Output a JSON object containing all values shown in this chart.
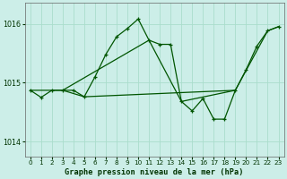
{
  "title": "Graphe pression niveau de la mer (hPa)",
  "background_color": "#cceee8",
  "grid_color": "#aaddcc",
  "line_color": "#005500",
  "marker_color": "#005500",
  "xlim": [
    -0.5,
    23.5
  ],
  "ylim": [
    1013.75,
    1016.35
  ],
  "xticks": [
    0,
    1,
    2,
    3,
    4,
    5,
    6,
    7,
    8,
    9,
    10,
    11,
    12,
    13,
    14,
    15,
    16,
    17,
    18,
    19,
    20,
    21,
    22,
    23
  ],
  "yticks": [
    1014,
    1015,
    1016
  ],
  "series1_x": [
    0,
    1,
    2,
    3,
    4,
    5,
    6,
    7,
    8,
    9,
    10,
    11,
    12,
    13,
    14,
    15,
    16,
    17,
    18,
    19,
    20,
    21,
    22,
    23
  ],
  "series1_y": [
    1014.87,
    1014.75,
    1014.87,
    1014.87,
    1014.87,
    1014.76,
    1015.1,
    1015.48,
    1015.78,
    1015.92,
    1016.08,
    1015.72,
    1015.65,
    1015.65,
    1014.68,
    1014.52,
    1014.73,
    1014.38,
    1014.38,
    1014.87,
    1015.22,
    1015.62,
    1015.88,
    1015.95
  ],
  "series2_x": [
    0,
    2,
    3,
    5,
    19,
    22,
    23
  ],
  "series2_y": [
    1014.87,
    1014.87,
    1014.87,
    1014.76,
    1014.87,
    1015.88,
    1015.95
  ],
  "series3_x": [
    3,
    11,
    14,
    19
  ],
  "series3_y": [
    1014.87,
    1015.72,
    1014.68,
    1014.87
  ]
}
